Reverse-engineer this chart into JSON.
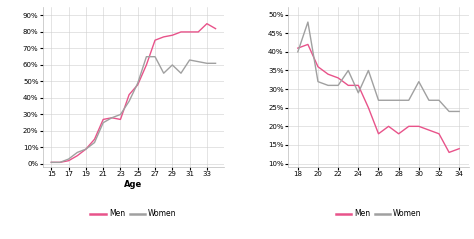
{
  "chart1": {
    "xlabel": "Age",
    "xlim": [
      14,
      35
    ],
    "ylim": [
      -0.02,
      0.95
    ],
    "xticks": [
      15,
      17,
      19,
      21,
      23,
      25,
      27,
      29,
      31,
      33
    ],
    "yticks": [
      0.0,
      0.1,
      0.2,
      0.3,
      0.4,
      0.5,
      0.6,
      0.7,
      0.8,
      0.9
    ],
    "men_x": [
      15,
      16,
      17,
      18,
      19,
      20,
      21,
      22,
      23,
      24,
      25,
      26,
      27,
      28,
      29,
      30,
      31,
      32,
      33,
      34
    ],
    "men_y": [
      0.01,
      0.01,
      0.02,
      0.05,
      0.09,
      0.15,
      0.27,
      0.28,
      0.27,
      0.42,
      0.48,
      0.6,
      0.75,
      0.77,
      0.78,
      0.8,
      0.8,
      0.8,
      0.85,
      0.82
    ],
    "women_x": [
      15,
      16,
      17,
      18,
      19,
      20,
      21,
      22,
      23,
      24,
      25,
      26,
      27,
      28,
      29,
      30,
      31,
      32,
      33,
      34
    ],
    "women_y": [
      0.01,
      0.01,
      0.03,
      0.07,
      0.09,
      0.13,
      0.25,
      0.28,
      0.3,
      0.38,
      0.49,
      0.65,
      0.65,
      0.55,
      0.6,
      0.55,
      0.63,
      0.62,
      0.61,
      0.61
    ],
    "men_color": "#e8538a",
    "women_color": "#a0a0a0",
    "legend_men": "Men",
    "legend_women": "Women"
  },
  "chart2": {
    "xlabel": "",
    "xlim": [
      17,
      35
    ],
    "ylim": [
      0.09,
      0.52
    ],
    "xticks": [
      18,
      20,
      22,
      24,
      26,
      28,
      30,
      32,
      34
    ],
    "yticks": [
      0.1,
      0.15,
      0.2,
      0.25,
      0.3,
      0.35,
      0.4,
      0.45,
      0.5
    ],
    "men_x": [
      18,
      19,
      20,
      21,
      22,
      23,
      24,
      25,
      26,
      27,
      28,
      29,
      30,
      31,
      32,
      33,
      34
    ],
    "men_y": [
      0.41,
      0.42,
      0.36,
      0.34,
      0.33,
      0.31,
      0.31,
      0.25,
      0.18,
      0.2,
      0.18,
      0.2,
      0.2,
      0.19,
      0.18,
      0.13,
      0.14
    ],
    "women_x": [
      18,
      19,
      20,
      21,
      22,
      23,
      24,
      25,
      26,
      27,
      28,
      29,
      30,
      31,
      32,
      33,
      34
    ],
    "women_y": [
      0.4,
      0.48,
      0.32,
      0.31,
      0.31,
      0.35,
      0.29,
      0.35,
      0.27,
      0.27,
      0.27,
      0.27,
      0.32,
      0.27,
      0.27,
      0.24,
      0.24
    ],
    "men_color": "#e8538a",
    "women_color": "#a0a0a0",
    "legend_men": "Men",
    "legend_women": "Women"
  },
  "bg_color": "#ffffff",
  "plot_bg": "#ffffff",
  "grid_color": "#d0d0d0",
  "linewidth": 1.0,
  "tick_fontsize": 5.0,
  "xlabel_fontsize": 6.0,
  "legend_fontsize": 5.5
}
